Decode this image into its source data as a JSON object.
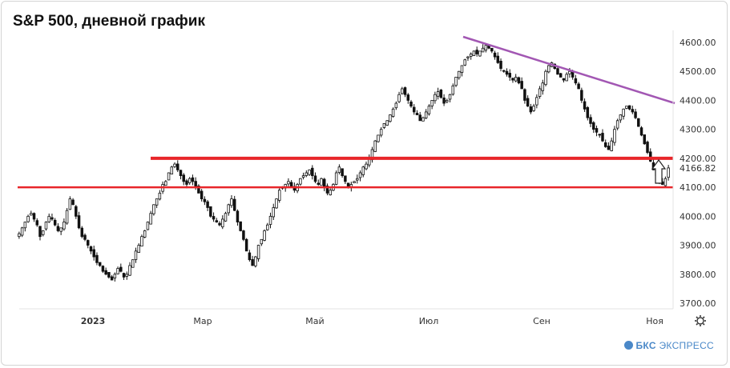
{
  "title": "S&P 500, дневной график",
  "brand": {
    "name": "БКС",
    "suffix": "ЭКСПРЕСС"
  },
  "settings_icon": "gear-icon",
  "chart_data": {
    "type": "candlestick",
    "yticks": [
      "4600.00",
      "4500.00",
      "4400.00",
      "4300.00",
      "4200.00",
      "4100.00",
      "4000.00",
      "3900.00",
      "3800.00",
      "3700.00"
    ],
    "ylim": [
      3690,
      4630
    ],
    "last_price_label": "4166.82",
    "last_price": 4166.82,
    "xticks": [
      {
        "label": "2023",
        "bold": true
      },
      {
        "label": "Мар",
        "bold": false
      },
      {
        "label": "Май",
        "bold": false
      },
      {
        "label": "Июл",
        "bold": false
      },
      {
        "label": "Сен",
        "bold": false
      },
      {
        "label": "Ноя",
        "bold": false
      }
    ],
    "closes": [
      3940,
      3960,
      3980,
      4000,
      4010,
      3990,
      3970,
      3930,
      3950,
      3980,
      4000,
      3990,
      3970,
      3950,
      3960,
      3980,
      4020,
      4060,
      4040,
      4000,
      3960,
      3930,
      3920,
      3900,
      3880,
      3860,
      3840,
      3830,
      3810,
      3800,
      3790,
      3780,
      3800,
      3820,
      3810,
      3790,
      3800,
      3830,
      3850,
      3880,
      3900,
      3930,
      3950,
      3980,
      4010,
      4040,
      4060,
      4080,
      4110,
      4120,
      4150,
      4170,
      4180,
      4160,
      4140,
      4120,
      4110,
      4130,
      4120,
      4100,
      4080,
      4060,
      4050,
      4030,
      4000,
      3990,
      3980,
      3970,
      3990,
      4010,
      4040,
      4060,
      4020,
      3980,
      3950,
      3920,
      3880,
      3850,
      3830,
      3860,
      3900,
      3920,
      3950,
      3970,
      4000,
      4030,
      4060,
      4090,
      4100,
      4110,
      4120,
      4100,
      4090,
      4110,
      4130,
      4140,
      4150,
      4160,
      4140,
      4120,
      4110,
      4130,
      4100,
      4080,
      4090,
      4110,
      4150,
      4170,
      4140,
      4120,
      4100,
      4110,
      4120,
      4130,
      4150,
      4170,
      4180,
      4200,
      4230,
      4260,
      4280,
      4300,
      4320,
      4330,
      4350,
      4370,
      4390,
      4420,
      4440,
      4420,
      4400,
      4380,
      4360,
      4350,
      4330,
      4340,
      4360,
      4380,
      4400,
      4420,
      4430,
      4410,
      4390,
      4400,
      4420,
      4450,
      4480,
      4500,
      4520,
      4540,
      4550,
      4560,
      4570,
      4560,
      4570,
      4580,
      4590,
      4580,
      4570,
      4550,
      4530,
      4510,
      4500,
      4490,
      4480,
      4470,
      4480,
      4460,
      4440,
      4400,
      4380,
      4360,
      4380,
      4410,
      4440,
      4460,
      4500,
      4520,
      4530,
      4510,
      4490,
      4480,
      4470,
      4490,
      4500,
      4480,
      4460,
      4440,
      4400,
      4370,
      4340,
      4320,
      4300,
      4290,
      4280,
      4260,
      4240,
      4230,
      4260,
      4300,
      4330,
      4350,
      4370,
      4380,
      4370,
      4360,
      4340,
      4310,
      4280,
      4250,
      4220,
      4190,
      4160,
      4140,
      4120,
      4110,
      4130,
      4166.82
    ]
  },
  "lines": [
    {
      "kind": "support",
      "value": 4100,
      "color": "#e8262a"
    },
    {
      "kind": "support",
      "value": 4200,
      "color": "#e8262a"
    },
    {
      "kind": "trend",
      "color": "#a257b3"
    }
  ]
}
